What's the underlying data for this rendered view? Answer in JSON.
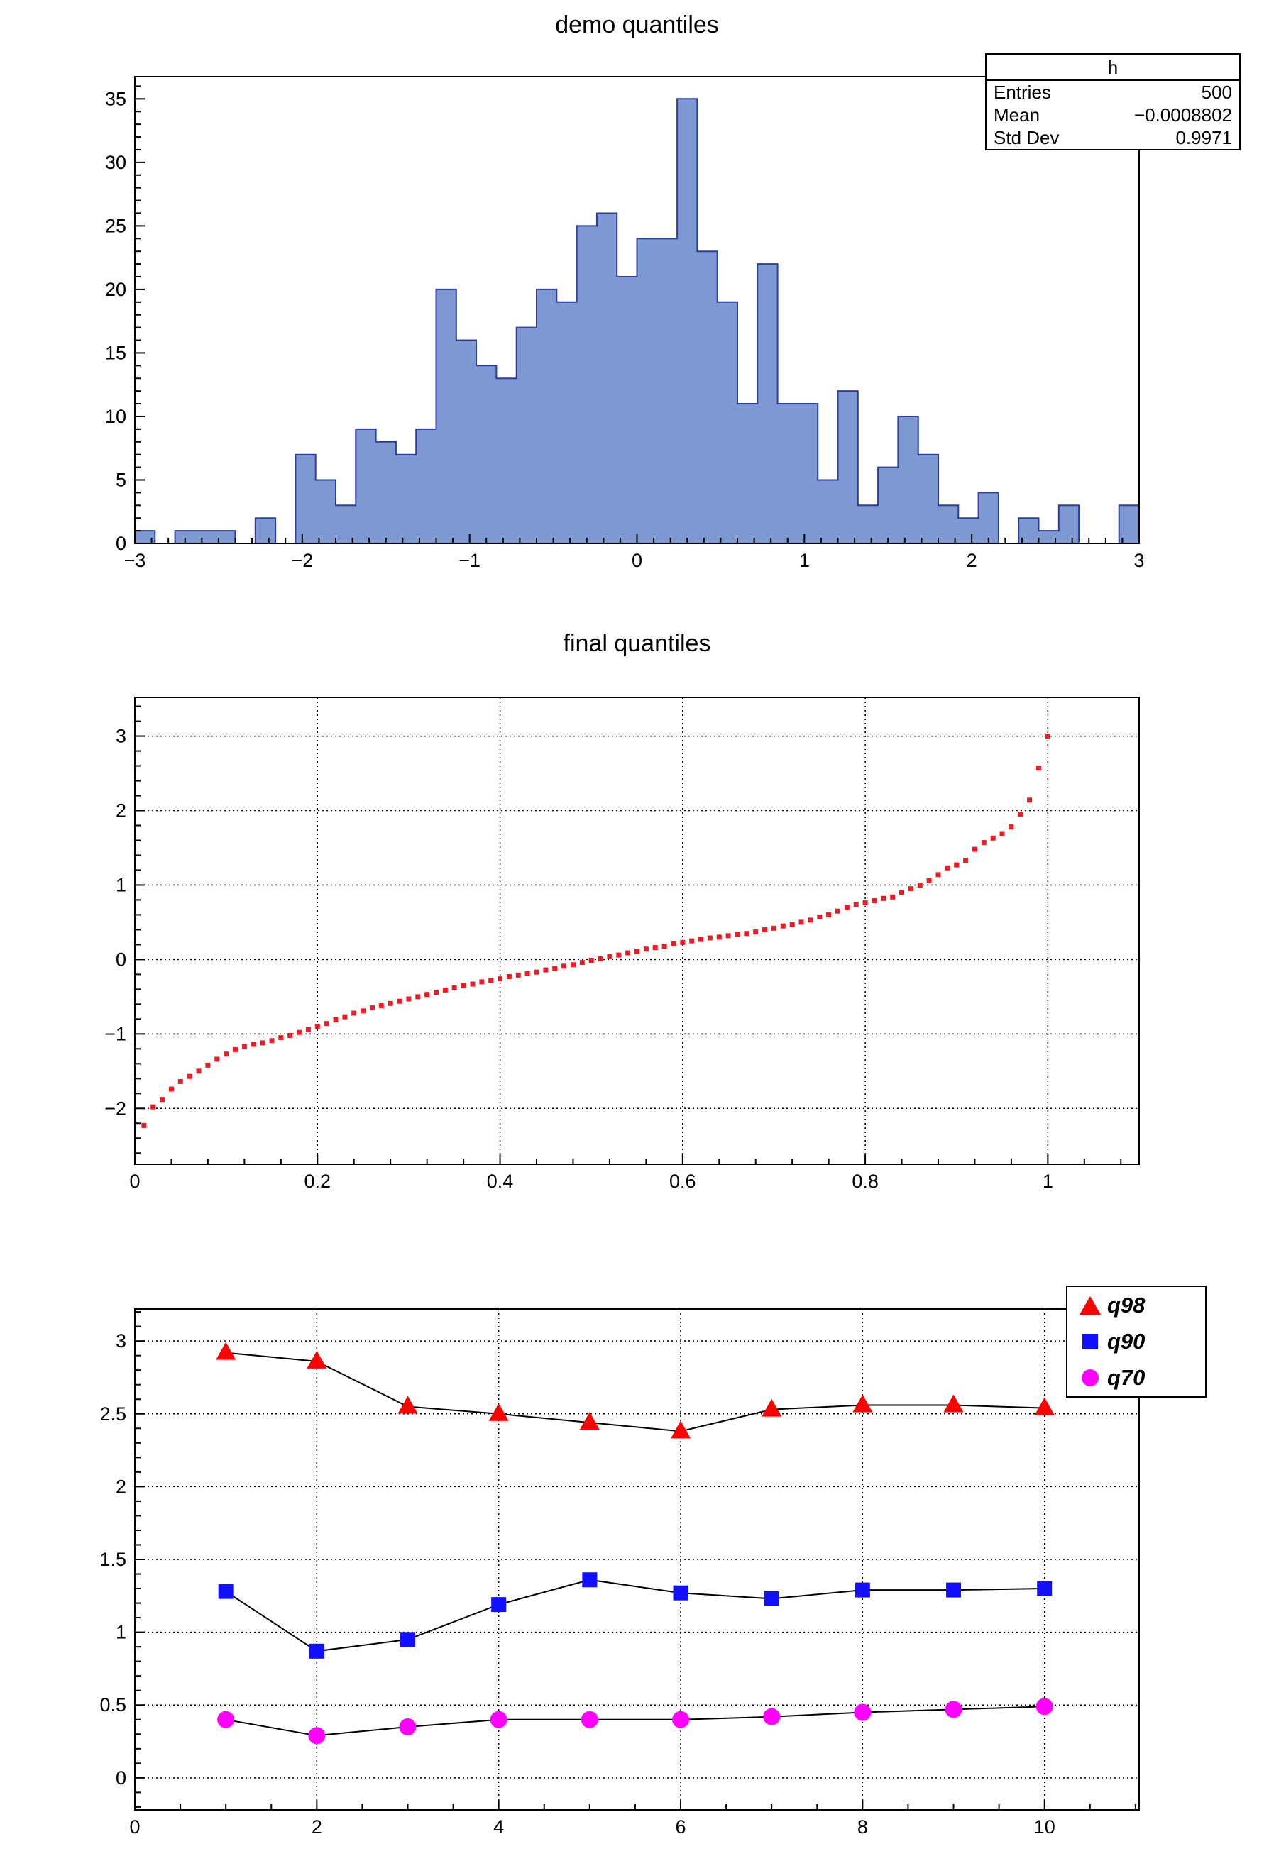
{
  "canvas": {
    "background": "#ffffff"
  },
  "panel1": {
    "title": "demo quantiles",
    "stats": {
      "title": "h",
      "rows": [
        {
          "label": "Entries",
          "value": "500"
        },
        {
          "label": "Mean",
          "value": "−0.0008802"
        },
        {
          "label": "Std Dev",
          "value": "0.9971"
        }
      ]
    }
  },
  "panel2": {
    "title": "final quantiles"
  },
  "panel3": {
    "legend_entries": [
      "q98",
      "q90",
      "q70"
    ]
  },
  "chart_data": [
    {
      "type": "histogram",
      "title": "demo quantiles",
      "name": "h",
      "entries": 500,
      "mean": -0.0008802,
      "std_dev": 0.9971,
      "bin_start": -3,
      "bin_width": 0.12,
      "values": [
        1,
        0,
        1,
        1,
        1,
        0,
        2,
        0,
        7,
        5,
        3,
        9,
        8,
        7,
        9,
        20,
        16,
        14,
        13,
        17,
        20,
        19,
        25,
        26,
        21,
        24,
        24,
        35,
        23,
        19,
        11,
        22,
        11,
        11,
        5,
        12,
        3,
        6,
        10,
        7,
        3,
        2,
        4,
        0,
        2,
        1,
        3,
        0,
        0,
        3
      ],
      "x_range": [
        -3,
        3
      ],
      "y_range": [
        0,
        36.75
      ],
      "x_ticks": {
        "values": [
          -3,
          -2,
          -1,
          0,
          1,
          2,
          3
        ],
        "labels": [
          "−3",
          "−2",
          "−1",
          "0",
          "1",
          "2",
          "3"
        ]
      },
      "y_ticks": {
        "values": [
          0,
          5,
          10,
          15,
          20,
          25,
          30,
          35
        ],
        "labels": [
          "0",
          "5",
          "10",
          "15",
          "20",
          "25",
          "30",
          "35"
        ]
      },
      "x_minor": 0.1,
      "y_minor": 1,
      "grid": false,
      "fill": "#7d99d1",
      "stroke": "#2c3da0"
    },
    {
      "type": "scatter",
      "title": "final quantiles",
      "marker": "square",
      "marker_size": 7,
      "color": "#ed1c24",
      "x": [
        0.01,
        0.02,
        0.03,
        0.04,
        0.05,
        0.06,
        0.07,
        0.08,
        0.09,
        0.1,
        0.11,
        0.12,
        0.13,
        0.14,
        0.15,
        0.16,
        0.17,
        0.18,
        0.19,
        0.2,
        0.21,
        0.22,
        0.23,
        0.24,
        0.25,
        0.26,
        0.27,
        0.28,
        0.29,
        0.3,
        0.31,
        0.32,
        0.33,
        0.34,
        0.35,
        0.36,
        0.37,
        0.38,
        0.39,
        0.4,
        0.41,
        0.42,
        0.43,
        0.44,
        0.45,
        0.46,
        0.47,
        0.48,
        0.49,
        0.5,
        0.51,
        0.52,
        0.53,
        0.54,
        0.55,
        0.56,
        0.57,
        0.58,
        0.59,
        0.6,
        0.61,
        0.62,
        0.63,
        0.64,
        0.65,
        0.66,
        0.67,
        0.68,
        0.69,
        0.7,
        0.71,
        0.72,
        0.73,
        0.74,
        0.75,
        0.76,
        0.77,
        0.78,
        0.79,
        0.8,
        0.81,
        0.82,
        0.83,
        0.84,
        0.85,
        0.86,
        0.87,
        0.88,
        0.89,
        0.9,
        0.91,
        0.92,
        0.93,
        0.94,
        0.95,
        0.96,
        0.97,
        0.98,
        0.99,
        1.0
      ],
      "y": [
        -2.23,
        -1.98,
        -1.88,
        -1.74,
        -1.64,
        -1.57,
        -1.5,
        -1.42,
        -1.34,
        -1.27,
        -1.21,
        -1.17,
        -1.14,
        -1.12,
        -1.09,
        -1.05,
        -1.02,
        -0.98,
        -0.94,
        -0.9,
        -0.86,
        -0.81,
        -0.77,
        -0.72,
        -0.69,
        -0.65,
        -0.62,
        -0.59,
        -0.56,
        -0.53,
        -0.5,
        -0.47,
        -0.44,
        -0.41,
        -0.38,
        -0.35,
        -0.33,
        -0.3,
        -0.28,
        -0.26,
        -0.23,
        -0.21,
        -0.19,
        -0.17,
        -0.14,
        -0.12,
        -0.09,
        -0.07,
        -0.04,
        -0.01,
        0.01,
        0.04,
        0.06,
        0.09,
        0.11,
        0.14,
        0.16,
        0.18,
        0.21,
        0.23,
        0.25,
        0.27,
        0.29,
        0.3,
        0.32,
        0.34,
        0.35,
        0.37,
        0.4,
        0.42,
        0.45,
        0.47,
        0.5,
        0.53,
        0.57,
        0.6,
        0.65,
        0.7,
        0.74,
        0.76,
        0.79,
        0.82,
        0.84,
        0.9,
        0.95,
        1.0,
        1.06,
        1.14,
        1.23,
        1.27,
        1.33,
        1.48,
        1.57,
        1.63,
        1.69,
        1.78,
        1.95,
        2.14,
        2.57,
        3.0
      ],
      "x_range": [
        0,
        1.1
      ],
      "y_range": [
        -2.75,
        3.52
      ],
      "x_ticks": {
        "values": [
          0,
          0.2,
          0.4,
          0.6,
          0.8,
          1
        ],
        "labels": [
          "0",
          "0.2",
          "0.4",
          "0.6",
          "0.8",
          "1"
        ]
      },
      "y_ticks": {
        "values": [
          -2,
          -1,
          0,
          1,
          2,
          3
        ],
        "labels": [
          "−2",
          "−1",
          "0",
          "1",
          "2",
          "3"
        ]
      },
      "x_minor": 0.04,
      "y_minor": 0.2,
      "grid": true
    },
    {
      "type": "line",
      "x": [
        1,
        2,
        3,
        4,
        5,
        6,
        7,
        8,
        9,
        10
      ],
      "series": [
        {
          "name": "q98",
          "marker": "triangle",
          "color": "#ff0000",
          "values": [
            2.92,
            2.86,
            2.55,
            2.5,
            2.44,
            2.38,
            2.53,
            2.56,
            2.56,
            2.54
          ]
        },
        {
          "name": "q90",
          "marker": "square",
          "color": "#1010ff",
          "values": [
            1.28,
            0.87,
            0.95,
            1.19,
            1.36,
            1.27,
            1.23,
            1.29,
            1.29,
            1.3
          ]
        },
        {
          "name": "q70",
          "marker": "circle",
          "color": "#ff00ff",
          "values": [
            0.4,
            0.29,
            0.35,
            0.4,
            0.4,
            0.4,
            0.42,
            0.45,
            0.47,
            0.49
          ]
        }
      ],
      "line_color": "#000000",
      "x_range": [
        0,
        11.04
      ],
      "y_range": [
        -0.22,
        3.22
      ],
      "x_ticks": {
        "values": [
          0,
          2,
          4,
          6,
          8,
          10
        ],
        "labels": [
          "0",
          "2",
          "4",
          "6",
          "8",
          "10"
        ]
      },
      "y_ticks": {
        "values": [
          0,
          0.5,
          1,
          1.5,
          2,
          2.5,
          3
        ],
        "labels": [
          "0",
          "0.5",
          "1",
          "1.5",
          "2",
          "2.5",
          "3"
        ]
      },
      "x_minor": 0.5,
      "y_minor": 0.1,
      "grid": true,
      "legend_position": "top-right"
    }
  ]
}
